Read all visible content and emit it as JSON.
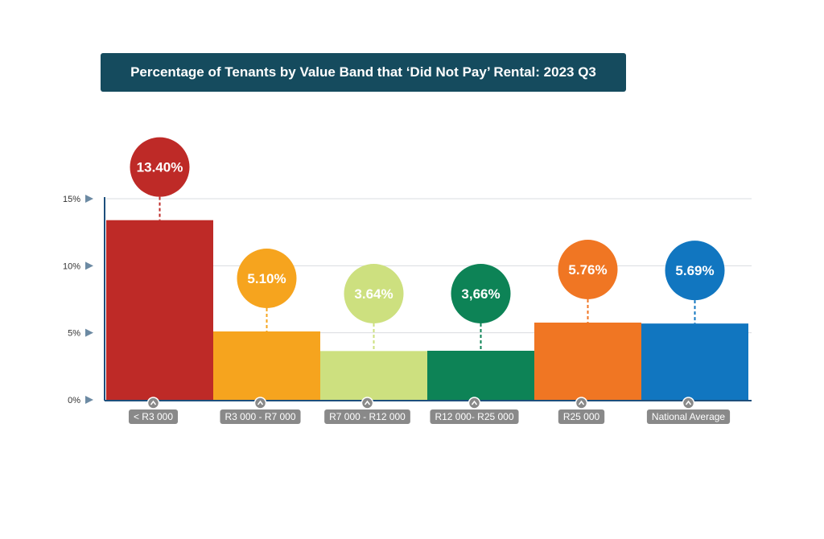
{
  "header": {
    "title": "Percentage of Tenants by Value Band that ‘Did Not Pay’ Rental: 2023 Q3"
  },
  "chart_data": {
    "type": "bar",
    "title": "Percentage of Tenants by Value Band that ‘Did Not Pay’ Rental: 2023 Q3",
    "xlabel": "",
    "ylabel": "",
    "ylim": [
      0,
      15
    ],
    "y_ticks": [
      0,
      5,
      10,
      15
    ],
    "y_tick_labels": [
      "0%",
      "5%",
      "10%",
      "15%"
    ],
    "grid": true,
    "categories": [
      "< R3 000",
      "R3 000 - R7 000",
      "R7 000 - R12 000",
      "R12 000- R25 000",
      "R25 000",
      "National Average"
    ],
    "values": [
      13.4,
      5.1,
      3.64,
      3.66,
      5.76,
      5.69
    ],
    "data_labels": [
      "13.40%",
      "5.10%",
      "3.64%",
      "3,66%",
      "5.76%",
      "5.69%"
    ],
    "colors": [
      "#be2a27",
      "#f6a41e",
      "#cde07f",
      "#0d8356",
      "#f07623",
      "#1176c0"
    ],
    "axis_color": "#1d4f7c",
    "grid_color": "#d9dce0",
    "label_box_color": "#898989"
  }
}
